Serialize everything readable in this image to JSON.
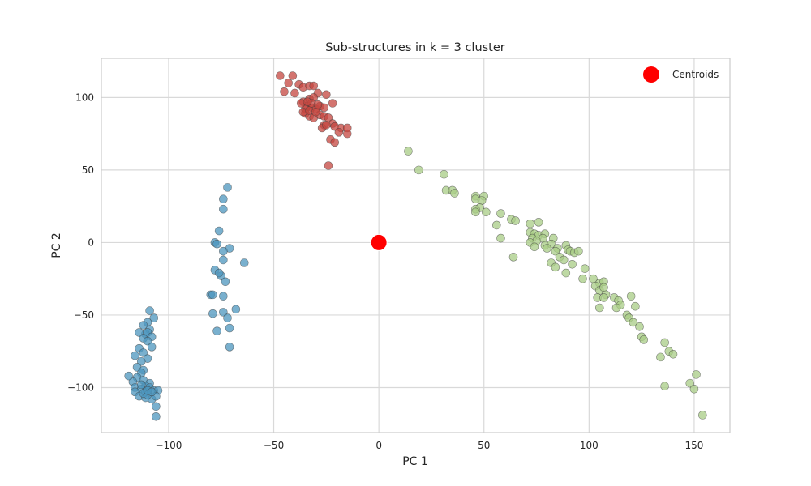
{
  "chart_data": {
    "type": "scatter",
    "title": "Sub-structures in k = 3 cluster",
    "xlabel": "PC 1",
    "ylabel": "PC 2",
    "xlim": [
      -132,
      167
    ],
    "ylim": [
      -131,
      127
    ],
    "xticks": [
      -100,
      -50,
      0,
      50,
      100,
      150
    ],
    "yticks": [
      -100,
      -50,
      0,
      50,
      100
    ],
    "xtick_labels": [
      "−100",
      "−50",
      "0",
      "50",
      "100",
      "150"
    ],
    "ytick_labels": [
      "−100",
      "−50",
      "0",
      "50",
      "100"
    ],
    "grid": true,
    "legend_position": "top-right",
    "series": [
      {
        "color": "#4c95bd",
        "points": [
          [
            -72,
            38
          ],
          [
            -74,
            30
          ],
          [
            -74,
            23
          ],
          [
            -76,
            8
          ],
          [
            -78,
            0
          ],
          [
            -77,
            -1
          ],
          [
            -71,
            -4
          ],
          [
            -74,
            -6
          ],
          [
            -64,
            -14
          ],
          [
            -74,
            -12
          ],
          [
            -78,
            -19
          ],
          [
            -75,
            -23
          ],
          [
            -76,
            -21
          ],
          [
            -73,
            -27
          ],
          [
            -80,
            -36
          ],
          [
            -74,
            -37
          ],
          [
            -79,
            -36
          ],
          [
            -68,
            -46
          ],
          [
            -74,
            -48
          ],
          [
            -72,
            -52
          ],
          [
            -79,
            -49
          ],
          [
            -71,
            -59
          ],
          [
            -77,
            -61
          ],
          [
            -71,
            -72
          ],
          [
            -109,
            -47
          ],
          [
            -107,
            -52
          ],
          [
            -110,
            -55
          ],
          [
            -112,
            -57
          ],
          [
            -109,
            -60
          ],
          [
            -111,
            -63
          ],
          [
            -110,
            -62
          ],
          [
            -108,
            -65
          ],
          [
            -114,
            -62
          ],
          [
            -112,
            -66
          ],
          [
            -110,
            -68
          ],
          [
            -108,
            -72
          ],
          [
            -114,
            -73
          ],
          [
            -112,
            -76
          ],
          [
            -110,
            -80
          ],
          [
            -116,
            -78
          ],
          [
            -113,
            -82
          ],
          [
            -115,
            -86
          ],
          [
            -112,
            -88
          ],
          [
            -113,
            -90
          ],
          [
            -115,
            -93
          ],
          [
            -112,
            -95
          ],
          [
            -109,
            -97
          ],
          [
            -111,
            -99
          ],
          [
            -117,
            -96
          ],
          [
            -119,
            -92
          ],
          [
            -116,
            -100
          ],
          [
            -113,
            -101
          ],
          [
            -111,
            -103
          ],
          [
            -109,
            -100
          ],
          [
            -107,
            -102
          ],
          [
            -105,
            -102
          ],
          [
            -116,
            -103
          ],
          [
            -114,
            -106
          ],
          [
            -111,
            -107
          ],
          [
            -108,
            -108
          ],
          [
            -106,
            -106
          ],
          [
            -112,
            -104
          ],
          [
            -110,
            -105
          ],
          [
            -106,
            -113
          ],
          [
            -106,
            -120
          ],
          [
            -113,
            -98
          ],
          [
            -110,
            -102
          ],
          [
            -108,
            -103
          ]
        ]
      },
      {
        "color": "#c4453f",
        "points": [
          [
            -47,
            115
          ],
          [
            -41,
            115
          ],
          [
            -43,
            110
          ],
          [
            -38,
            109
          ],
          [
            -45,
            104
          ],
          [
            -40,
            103
          ],
          [
            -36,
            107
          ],
          [
            -33,
            108
          ],
          [
            -31,
            108
          ],
          [
            -29,
            103
          ],
          [
            -25,
            102
          ],
          [
            -36,
            97
          ],
          [
            -33,
            99
          ],
          [
            -31,
            100
          ],
          [
            -34,
            94
          ],
          [
            -32,
            93
          ],
          [
            -35,
            92
          ],
          [
            -30,
            92
          ],
          [
            -28,
            94
          ],
          [
            -26,
            93
          ],
          [
            -22,
            96
          ],
          [
            -35,
            89
          ],
          [
            -33,
            87
          ],
          [
            -31,
            86
          ],
          [
            -28,
            88
          ],
          [
            -26,
            87
          ],
          [
            -36,
            90
          ],
          [
            -33,
            91
          ],
          [
            -30,
            90
          ],
          [
            -24,
            86
          ],
          [
            -22,
            82
          ],
          [
            -26,
            81
          ],
          [
            -27,
            79
          ],
          [
            -25,
            81
          ],
          [
            -21,
            80
          ],
          [
            -18,
            79
          ],
          [
            -15,
            79
          ],
          [
            -19,
            76
          ],
          [
            -15,
            75
          ],
          [
            -23,
            71
          ],
          [
            -21,
            69
          ],
          [
            -24,
            53
          ],
          [
            -37,
            96
          ],
          [
            -32,
            96
          ],
          [
            -34,
            97
          ],
          [
            -29,
            95
          ]
        ]
      },
      {
        "color": "#a8cc86",
        "points": [
          [
            14,
            63
          ],
          [
            19,
            50
          ],
          [
            31,
            47
          ],
          [
            32,
            36
          ],
          [
            35,
            36
          ],
          [
            36,
            34
          ],
          [
            46,
            32
          ],
          [
            50,
            32
          ],
          [
            46,
            30
          ],
          [
            49,
            29
          ],
          [
            48,
            24
          ],
          [
            46,
            23
          ],
          [
            46,
            21
          ],
          [
            51,
            21
          ],
          [
            58,
            20
          ],
          [
            56,
            12
          ],
          [
            63,
            16
          ],
          [
            65,
            15
          ],
          [
            58,
            3
          ],
          [
            64,
            -10
          ],
          [
            72,
            13
          ],
          [
            76,
            14
          ],
          [
            72,
            7
          ],
          [
            74,
            6
          ],
          [
            76,
            5
          ],
          [
            73,
            3
          ],
          [
            79,
            6
          ],
          [
            78,
            3
          ],
          [
            75,
            1
          ],
          [
            72,
            0
          ],
          [
            74,
            -3
          ],
          [
            79,
            -2
          ],
          [
            83,
            3
          ],
          [
            82,
            -1
          ],
          [
            80,
            -4
          ],
          [
            85,
            -4
          ],
          [
            84,
            -6
          ],
          [
            89,
            -2
          ],
          [
            90,
            -5
          ],
          [
            86,
            -10
          ],
          [
            88,
            -12
          ],
          [
            91,
            -6
          ],
          [
            93,
            -7
          ],
          [
            95,
            -6
          ],
          [
            82,
            -14
          ],
          [
            84,
            -17
          ],
          [
            89,
            -21
          ],
          [
            92,
            -15
          ],
          [
            98,
            -18
          ],
          [
            97,
            -25
          ],
          [
            102,
            -25
          ],
          [
            105,
            -28
          ],
          [
            107,
            -27
          ],
          [
            103,
            -30
          ],
          [
            105,
            -33
          ],
          [
            107,
            -31
          ],
          [
            108,
            -36
          ],
          [
            104,
            -38
          ],
          [
            107,
            -38
          ],
          [
            105,
            -45
          ],
          [
            112,
            -38
          ],
          [
            114,
            -40
          ],
          [
            115,
            -43
          ],
          [
            113,
            -45
          ],
          [
            118,
            -50
          ],
          [
            120,
            -37
          ],
          [
            122,
            -44
          ],
          [
            119,
            -52
          ],
          [
            121,
            -55
          ],
          [
            124,
            -58
          ],
          [
            125,
            -65
          ],
          [
            126,
            -67
          ],
          [
            134,
            -79
          ],
          [
            136,
            -69
          ],
          [
            138,
            -75
          ],
          [
            140,
            -77
          ],
          [
            136,
            -99
          ],
          [
            148,
            -97
          ],
          [
            151,
            -91
          ],
          [
            150,
            -101
          ],
          [
            154,
            -119
          ]
        ]
      }
    ],
    "centroids": {
      "name": "Centroids",
      "color": "#ff0000",
      "points": [
        [
          0,
          0
        ]
      ]
    }
  }
}
